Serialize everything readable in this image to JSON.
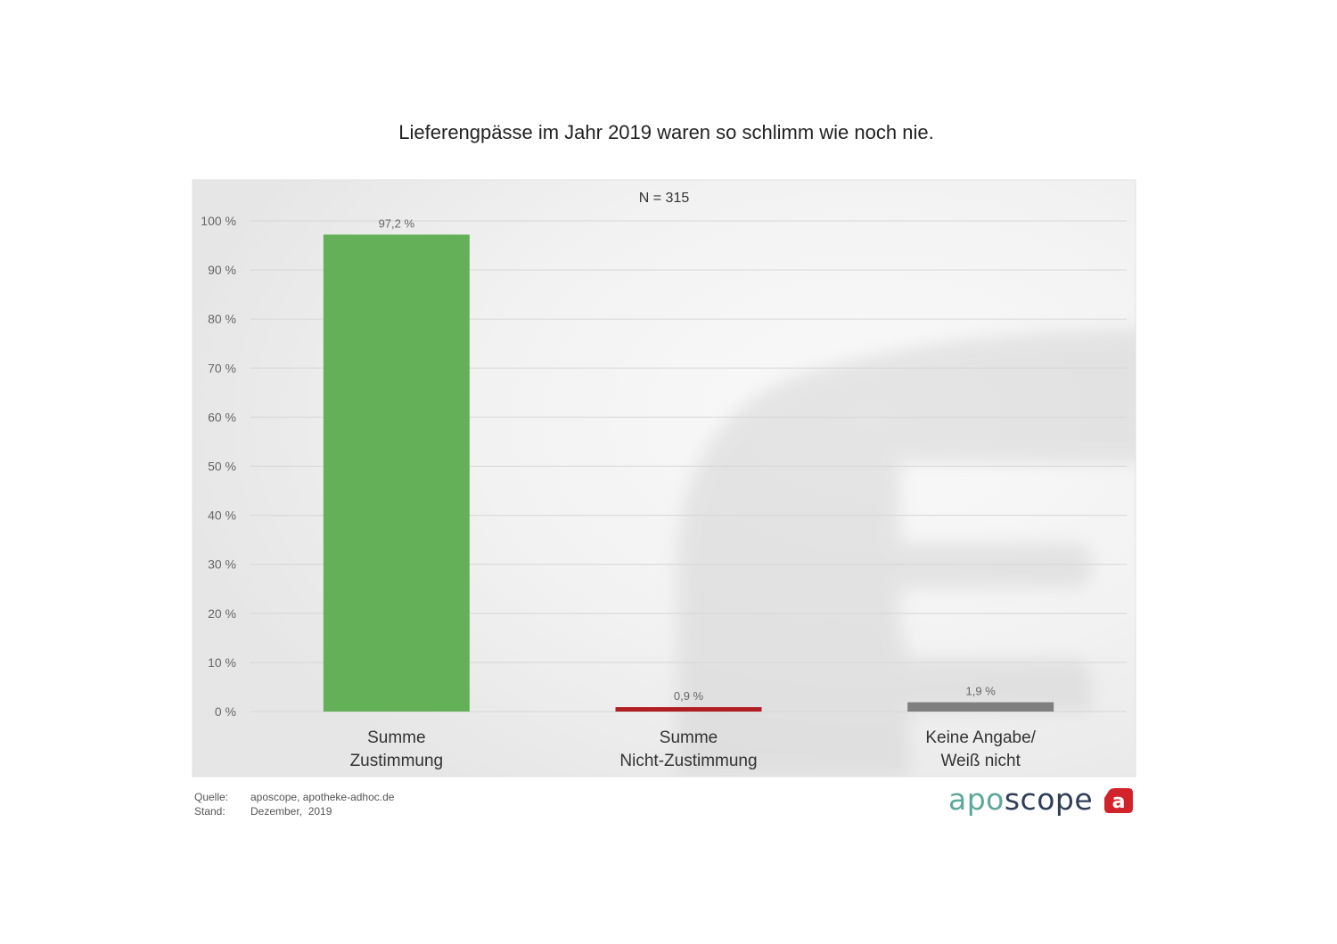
{
  "chart_data": {
    "type": "bar",
    "title": "Lieferengpässe im Jahr 2019 waren so schlimm wie noch nie.",
    "subtitle": "N = 315",
    "categories": [
      [
        "Summe",
        "Zustimmung"
      ],
      [
        "Summe",
        "Nicht-Zustimmung"
      ],
      [
        "Keine Angabe/",
        "Weiß nicht"
      ]
    ],
    "values": [
      97.2,
      0.9,
      1.9
    ],
    "value_labels": [
      "97,2 %",
      "0,9 %",
      "1,9 %"
    ],
    "colors": [
      "#64b058",
      "#b01e23",
      "#7f7f7f"
    ],
    "y_ticks": [
      0,
      10,
      20,
      30,
      40,
      50,
      60,
      70,
      80,
      90,
      100
    ],
    "y_tick_labels": [
      "0 %",
      "10 %",
      "20 %",
      "30 %",
      "40 %",
      "50 %",
      "60 %",
      "70 %",
      "80 %",
      "90 %",
      "100 %"
    ],
    "ylim": [
      0,
      100
    ],
    "grid": true,
    "xlabel": "",
    "ylabel": ""
  },
  "footer": {
    "source_label": "Quelle:",
    "source_value": "aposcope, apotheke-adhoc.de",
    "date_label": "Stand:",
    "date_value": "Dezember,  2019"
  },
  "brand": {
    "part1": "apo",
    "part2": "scope",
    "mark_letter": "a",
    "mark_color": "#d2232a",
    "icon": "aposcope-logo"
  }
}
